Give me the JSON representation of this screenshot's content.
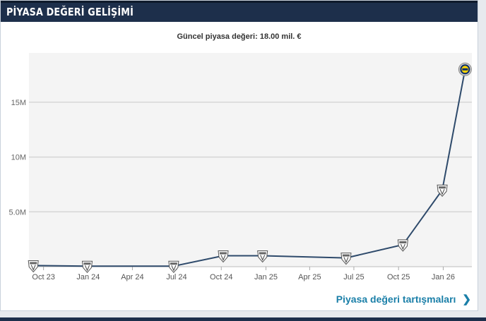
{
  "header": {
    "title": "PİYASA DEĞERİ GELİŞİMİ"
  },
  "current_value_label": "Güncel piyasa değeri: 18.00 mil. €",
  "footer": {
    "link_label": "Piyasa değeri tartışmaları",
    "link_icon": "chevron-right-icon"
  },
  "colors": {
    "header_bg": "#1d2f4b",
    "line": "#2e4a6b",
    "plot_bg": "#f4f4f4",
    "grid": "#d6d6d6",
    "link": "#1a7fa8"
  },
  "chart_data": {
    "type": "line",
    "title": "",
    "xlabel": "",
    "ylabel": "",
    "x_ticks": [
      "2023-10-01",
      "2024-01-01",
      "2024-04-01",
      "2024-07-01",
      "2024-10-01",
      "2025-01-01",
      "2025-04-01",
      "2025-07-01",
      "2025-10-01",
      "2026-01-01"
    ],
    "x_tick_labels": [
      "Oct 23",
      "Jan 24",
      "Apr 24",
      "Jul 24",
      "Oct 24",
      "Jan 25",
      "Apr 25",
      "Jul 25",
      "Oct 25",
      "Jan 26"
    ],
    "xlim": [
      "2023-09-01",
      "2026-03-01"
    ],
    "y_ticks": [
      5000000,
      10000000,
      15000000
    ],
    "y_tick_labels": [
      "5.0M",
      "10M",
      "15M"
    ],
    "ylim": [
      0,
      19500000
    ],
    "grid": true,
    "series": [
      {
        "points": [
          {
            "x": "2023-09-10",
            "y": 100000,
            "marker": "club-crest-icon"
          },
          {
            "x": "2023-12-30",
            "y": 50000,
            "marker": "club-crest-icon"
          },
          {
            "x": "2024-06-25",
            "y": 50000,
            "marker": "club-crest-icon"
          },
          {
            "x": "2024-10-05",
            "y": 1000000,
            "marker": "club-crest-icon"
          },
          {
            "x": "2024-12-25",
            "y": 1000000,
            "marker": "club-crest-icon"
          },
          {
            "x": "2025-06-15",
            "y": 800000,
            "marker": "club-crest-icon"
          },
          {
            "x": "2025-10-10",
            "y": 2000000,
            "marker": "club-crest-icon"
          },
          {
            "x": "2025-12-30",
            "y": 7000000,
            "marker": "club-crest-icon"
          },
          {
            "x": "2026-02-15",
            "y": 18000000,
            "marker": "new-club-crest-icon"
          }
        ]
      }
    ]
  }
}
